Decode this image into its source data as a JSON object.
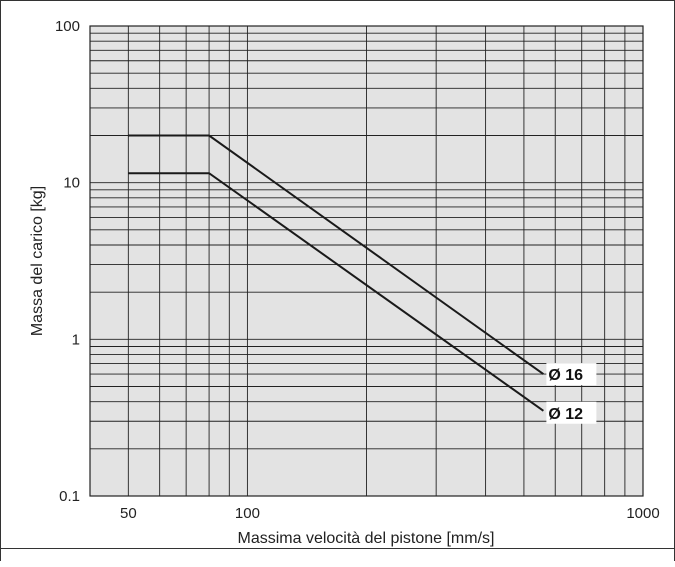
{
  "chart_data": {
    "type": "line",
    "title": "",
    "xlabel": "Massima velocità del pistone [mm/s]",
    "ylabel": "Massa del carico [kg]",
    "xscale": "log",
    "yscale": "log",
    "xlim": [
      40,
      1000
    ],
    "ylim": [
      0.1,
      100
    ],
    "grid": true,
    "x_ticks": [
      {
        "value": 50,
        "label": "50"
      },
      {
        "value": 100,
        "label": "100"
      },
      {
        "value": 1000,
        "label": "1000"
      }
    ],
    "y_ticks": [
      {
        "value": 100,
        "label": "100"
      },
      {
        "value": 10,
        "label": "10"
      },
      {
        "value": 1,
        "label": "1"
      },
      {
        "value": 0.1,
        "label": "0.1"
      }
    ],
    "series": [
      {
        "name": "Ø 16",
        "x": [
          50,
          80,
          560
        ],
        "y": [
          20,
          20,
          0.6
        ]
      },
      {
        "name": "Ø 12",
        "x": [
          50,
          80,
          560
        ],
        "y": [
          11.5,
          11.5,
          0.35
        ]
      }
    ],
    "colors": {
      "plot_background": "#e3e3e3",
      "grid": "#222222",
      "line": "#1a1a1a"
    }
  }
}
